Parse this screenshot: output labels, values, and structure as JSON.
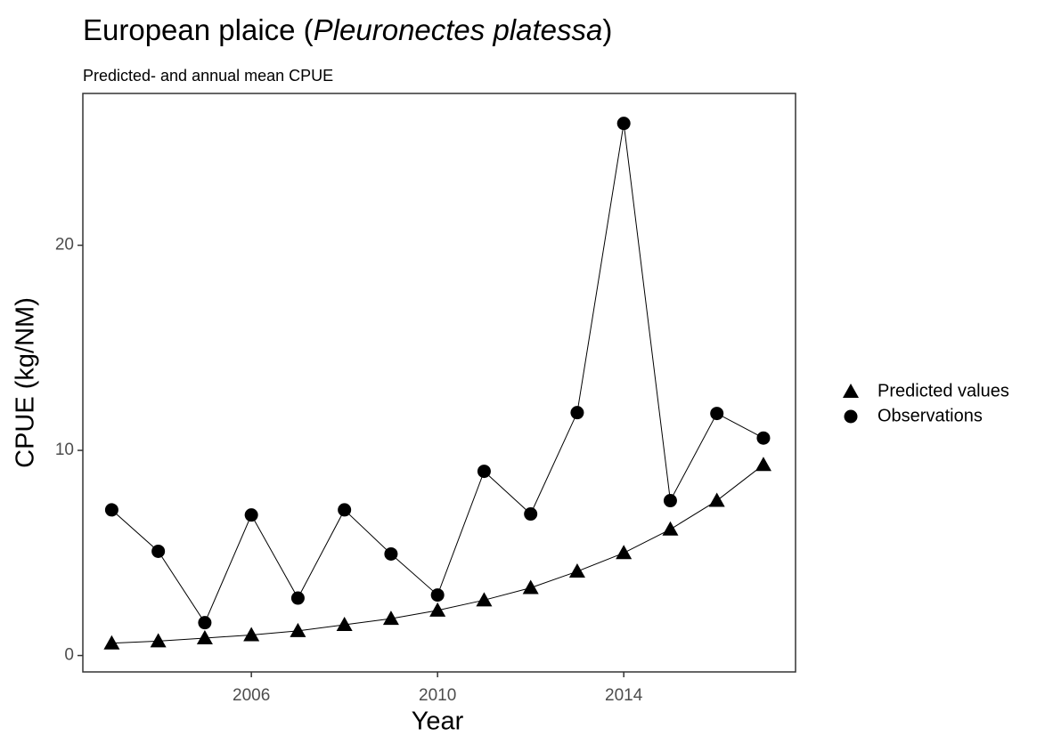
{
  "chart_data": {
    "type": "line",
    "title": [
      "European plaice (",
      "Pleuronectes platessa",
      ")"
    ],
    "subtitle": "Predicted- and annual mean CPUE",
    "x_label": "Year",
    "y_label": "CPUE (kg/NM)",
    "x": [
      2003,
      2004,
      2005,
      2006,
      2007,
      2008,
      2009,
      2010,
      2011,
      2012,
      2013,
      2014,
      2015,
      2016,
      2017
    ],
    "series": [
      {
        "name": "Predicted values",
        "color": "#000000",
        "shape": "triangle",
        "values": [
          0.6,
          0.7,
          0.85,
          1.0,
          1.2,
          1.5,
          1.8,
          2.2,
          2.7,
          3.3,
          4.1,
          5.0,
          6.15,
          7.55,
          9.3
        ]
      },
      {
        "name": "Observations",
        "color": "#000000",
        "shape": "circle",
        "values": [
          7.1,
          5.08,
          1.6,
          6.85,
          2.8,
          7.1,
          4.95,
          2.95,
          8.98,
          6.9,
          11.84,
          25.94,
          7.55,
          11.8,
          10.6
        ]
      }
    ],
    "xlim": [
      2002.38,
      2017.69
    ],
    "xticks": [
      2006,
      2010,
      2014
    ],
    "ylim": [
      -0.8,
      27.4
    ],
    "yticks": [
      0,
      10,
      20
    ],
    "legend": "right",
    "grid": false
  }
}
